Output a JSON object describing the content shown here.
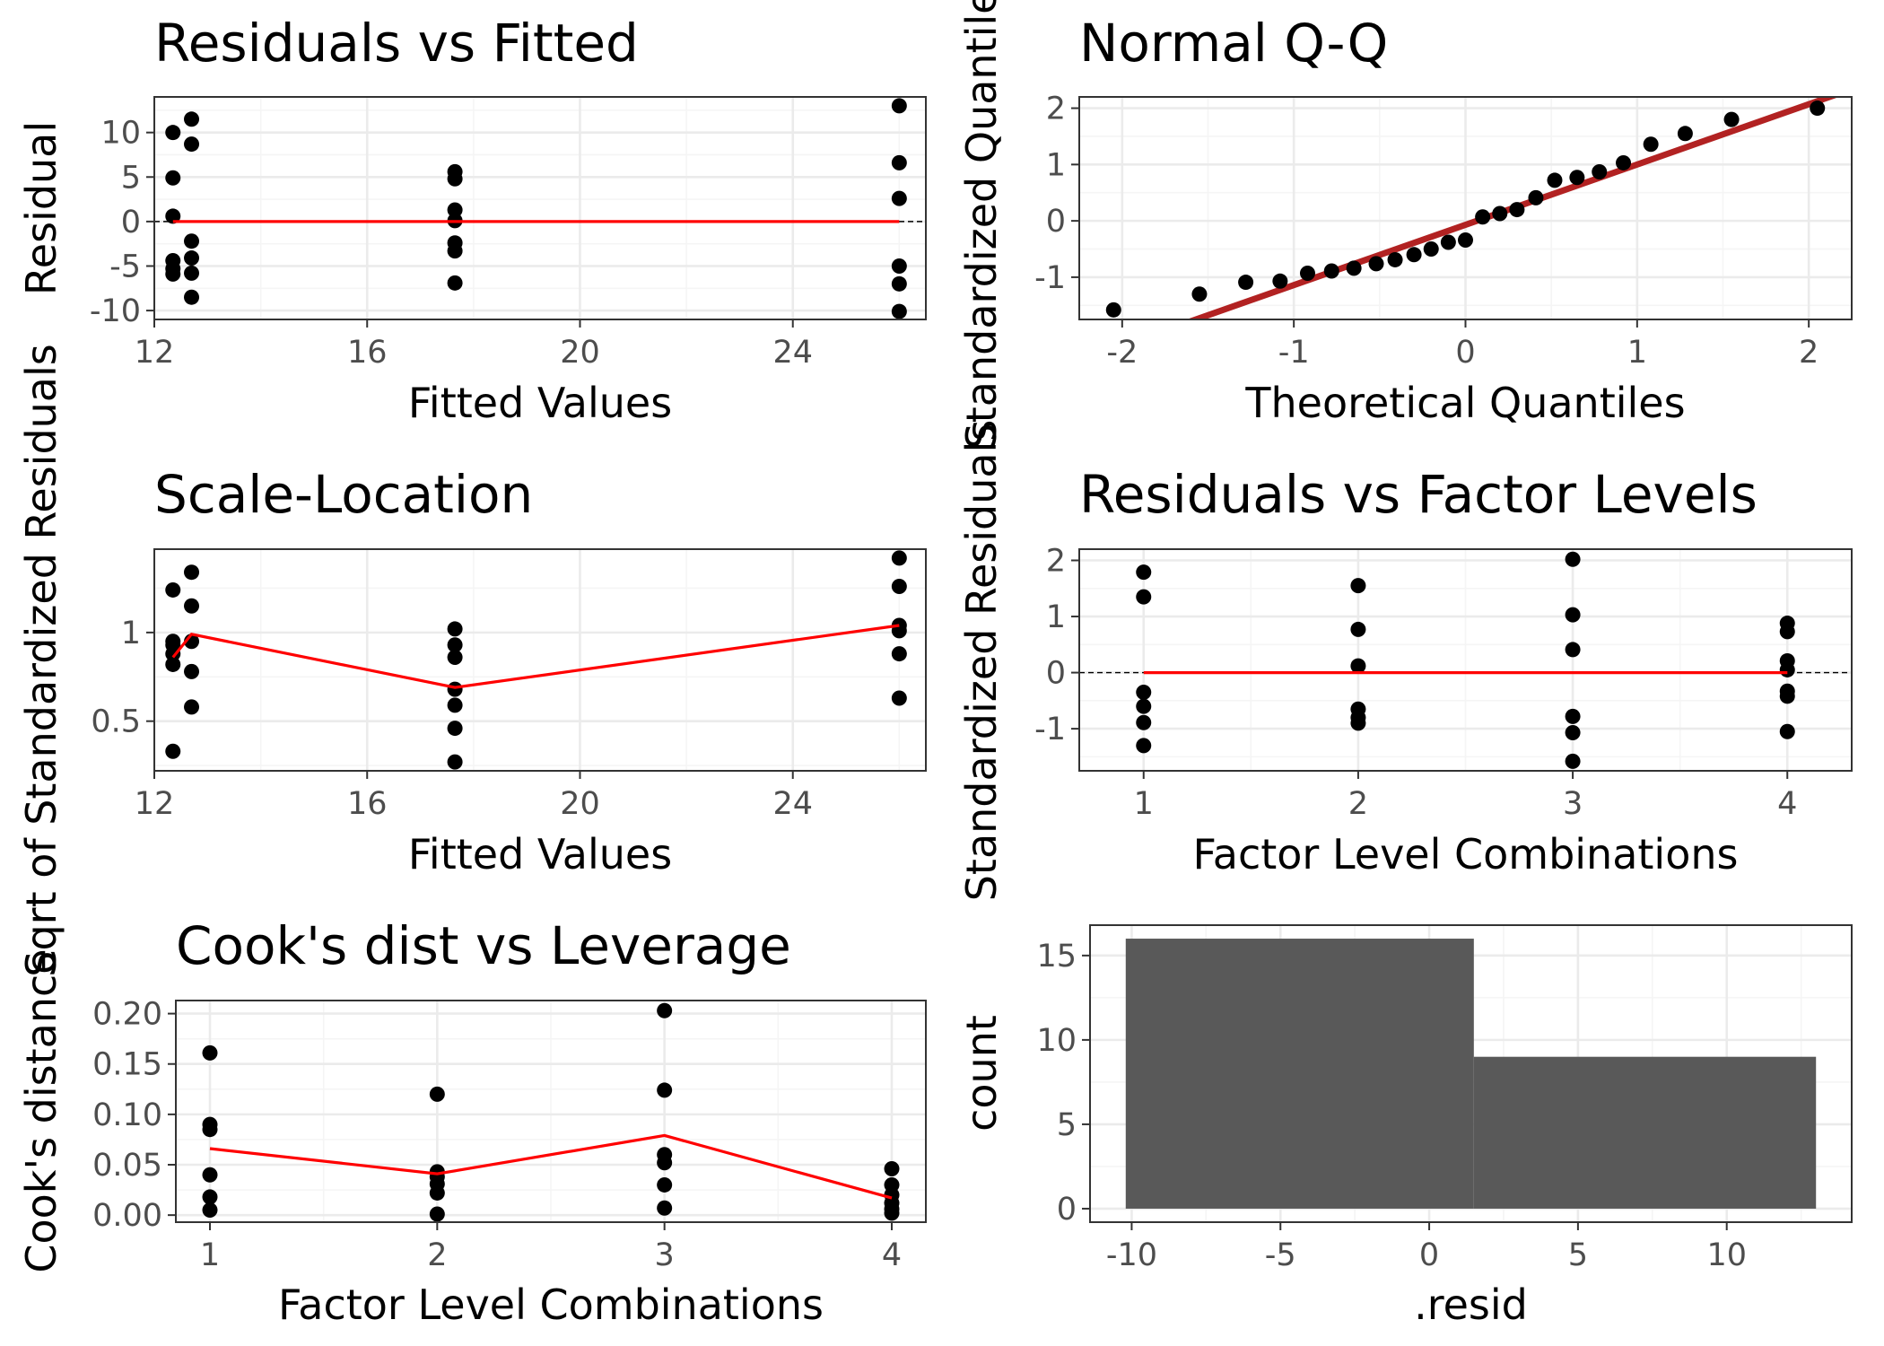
{
  "chart_data": [
    {
      "type": "scatter",
      "title": "Residuals vs Fitted",
      "xlabel": "Fitted Values",
      "ylabel": "Residual",
      "xlim": [
        12,
        26.5
      ],
      "ylim": [
        -11,
        14
      ],
      "xticks": [
        12,
        16,
        20,
        24
      ],
      "yticks": [
        10,
        5,
        0,
        -5,
        -10
      ],
      "hline": 0,
      "points": [
        [
          12.35,
          10
        ],
        [
          12.35,
          4.9
        ],
        [
          12.35,
          0.6
        ],
        [
          12.35,
          -4.4
        ],
        [
          12.35,
          -5.3
        ],
        [
          12.35,
          -5.9
        ],
        [
          12.7,
          11.5
        ],
        [
          12.7,
          8.7
        ],
        [
          12.7,
          -2.2
        ],
        [
          12.7,
          -4.1
        ],
        [
          12.7,
          -5.8
        ],
        [
          12.7,
          -8.5
        ],
        [
          17.65,
          5.6
        ],
        [
          17.65,
          4.8
        ],
        [
          17.65,
          1.3
        ],
        [
          17.65,
          0.1
        ],
        [
          17.65,
          -2.4
        ],
        [
          17.65,
          -3.3
        ],
        [
          17.65,
          -6.9
        ],
        [
          26.0,
          13.0
        ],
        [
          26.0,
          6.6
        ],
        [
          26.0,
          2.6
        ],
        [
          26.0,
          -5.0
        ],
        [
          26.0,
          -7.0
        ],
        [
          26.0,
          -10.1
        ]
      ],
      "trend": [
        [
          12.35,
          0
        ],
        [
          26.0,
          0
        ]
      ]
    },
    {
      "type": "scatter",
      "title": "Normal Q-Q",
      "xlabel": "Theoretical Quantiles",
      "ylabel": "Standardized Quantiles",
      "xlim": [
        -2.25,
        2.25
      ],
      "ylim": [
        -1.75,
        2.2
      ],
      "xticks": [
        -2,
        -1,
        0,
        1,
        2
      ],
      "yticks": [
        2,
        1,
        0,
        -1
      ],
      "points": [
        [
          -2.05,
          -1.58
        ],
        [
          -1.55,
          -1.3
        ],
        [
          -1.28,
          -1.09
        ],
        [
          -1.08,
          -1.07
        ],
        [
          -0.92,
          -0.93
        ],
        [
          -0.78,
          -0.89
        ],
        [
          -0.65,
          -0.84
        ],
        [
          -0.52,
          -0.76
        ],
        [
          -0.41,
          -0.69
        ],
        [
          -0.3,
          -0.6
        ],
        [
          -0.2,
          -0.5
        ],
        [
          -0.1,
          -0.38
        ],
        [
          0.0,
          -0.34
        ],
        [
          0.1,
          0.07
        ],
        [
          0.2,
          0.13
        ],
        [
          0.3,
          0.2
        ],
        [
          0.41,
          0.41
        ],
        [
          0.52,
          0.72
        ],
        [
          0.65,
          0.77
        ],
        [
          0.78,
          0.87
        ],
        [
          0.92,
          1.03
        ],
        [
          1.08,
          1.36
        ],
        [
          1.28,
          1.55
        ],
        [
          1.55,
          1.8
        ],
        [
          2.05,
          2.0
        ]
      ],
      "ref_line": {
        "slope": 1.07,
        "intercept": -0.07
      }
    },
    {
      "type": "scatter",
      "title": "Scale-Location",
      "xlabel": "Fitted Values",
      "ylabel": "Sqrt of Standardized Residuals",
      "xlim": [
        12,
        26.5
      ],
      "ylim": [
        0.22,
        1.47
      ],
      "xticks": [
        12,
        16,
        20,
        24
      ],
      "yticks": [
        1.0,
        0.5
      ],
      "points": [
        [
          12.35,
          1.24
        ],
        [
          12.35,
          0.95
        ],
        [
          12.35,
          0.93
        ],
        [
          12.35,
          0.88
        ],
        [
          12.35,
          0.82
        ],
        [
          12.35,
          0.33
        ],
        [
          12.7,
          1.34
        ],
        [
          12.7,
          1.15
        ],
        [
          12.7,
          0.95
        ],
        [
          12.7,
          0.78
        ],
        [
          12.7,
          0.58
        ],
        [
          17.65,
          1.02
        ],
        [
          17.65,
          0.93
        ],
        [
          17.65,
          0.86
        ],
        [
          17.65,
          0.68
        ],
        [
          17.65,
          0.59
        ],
        [
          17.65,
          0.46
        ],
        [
          17.65,
          0.27
        ],
        [
          26.0,
          1.42
        ],
        [
          26.0,
          1.26
        ],
        [
          26.0,
          1.04
        ],
        [
          26.0,
          1.01
        ],
        [
          26.0,
          0.88
        ],
        [
          26.0,
          0.63
        ]
      ],
      "trend": [
        [
          12.35,
          0.86
        ],
        [
          12.7,
          0.99
        ],
        [
          17.65,
          0.69
        ],
        [
          26.0,
          1.04
        ]
      ]
    },
    {
      "type": "scatter",
      "title": "Residuals vs Factor Levels",
      "xlabel": "Factor Level Combinations",
      "ylabel": "Standardized Residuals",
      "xlim": [
        0.7,
        4.3
      ],
      "ylim": [
        -1.75,
        2.2
      ],
      "xticks": [
        1,
        2,
        3,
        4
      ],
      "yticks": [
        2,
        1,
        0,
        -1
      ],
      "hline": 0,
      "points": [
        [
          1,
          1.79
        ],
        [
          1,
          1.35
        ],
        [
          1,
          -0.35
        ],
        [
          1,
          -0.6
        ],
        [
          1,
          -0.89
        ],
        [
          1,
          -1.3
        ],
        [
          2,
          1.55
        ],
        [
          2,
          0.77
        ],
        [
          2,
          0.12
        ],
        [
          2,
          -0.65
        ],
        [
          2,
          -0.8
        ],
        [
          2,
          -0.9
        ],
        [
          3,
          2.02
        ],
        [
          3,
          1.03
        ],
        [
          3,
          0.41
        ],
        [
          3,
          -0.78
        ],
        [
          3,
          -1.07
        ],
        [
          3,
          -1.58
        ],
        [
          4,
          0.88
        ],
        [
          4,
          0.73
        ],
        [
          4,
          0.21
        ],
        [
          4,
          0.05
        ],
        [
          4,
          -0.33
        ],
        [
          4,
          -0.42
        ],
        [
          4,
          -1.05
        ]
      ],
      "trend": [
        [
          1,
          0
        ],
        [
          4,
          0
        ]
      ]
    },
    {
      "type": "scatter",
      "title": "Cook's dist vs Leverage",
      "xlabel": "Factor Level Combinations",
      "ylabel": "Cook's distance",
      "xlim": [
        0.85,
        4.15
      ],
      "ylim": [
        -0.007,
        0.213
      ],
      "xticks": [
        1,
        2,
        3,
        4
      ],
      "yticks": [
        0.2,
        0.15,
        0.1,
        0.05,
        0.0
      ],
      "ytick_labels": [
        "0.20",
        "0.15",
        "0.10",
        "0.05",
        "0.00"
      ],
      "points": [
        [
          1,
          0.161
        ],
        [
          1,
          0.09
        ],
        [
          1,
          0.085
        ],
        [
          1,
          0.04
        ],
        [
          1,
          0.018
        ],
        [
          1,
          0.005
        ],
        [
          2,
          0.12
        ],
        [
          2,
          0.043
        ],
        [
          2,
          0.038
        ],
        [
          2,
          0.031
        ],
        [
          2,
          0.022
        ],
        [
          2,
          0.001
        ],
        [
          3,
          0.203
        ],
        [
          3,
          0.124
        ],
        [
          3,
          0.06
        ],
        [
          3,
          0.052
        ],
        [
          3,
          0.03
        ],
        [
          3,
          0.007
        ],
        [
          4,
          0.046
        ],
        [
          4,
          0.03
        ],
        [
          4,
          0.02
        ],
        [
          4,
          0.012
        ],
        [
          4,
          0.006
        ],
        [
          4,
          0.002
        ]
      ],
      "trend": [
        [
          1,
          0.066
        ],
        [
          2,
          0.041
        ],
        [
          3,
          0.079
        ],
        [
          4,
          0.017
        ]
      ]
    },
    {
      "type": "bar",
      "title": "",
      "xlabel": ".resid",
      "ylabel": "count",
      "xlim": [
        -11.4,
        14.2
      ],
      "ylim": [
        -0.8,
        16.8
      ],
      "xticks": [
        -10,
        -5,
        0,
        5,
        10
      ],
      "yticks": [
        15,
        10,
        5,
        0
      ],
      "bins": [
        {
          "from": -10.2,
          "to": 1.5,
          "count": 16
        },
        {
          "from": 1.5,
          "to": 13.0,
          "count": 9
        }
      ]
    }
  ],
  "colors": {
    "points": "#000000",
    "trend": "#ff0000",
    "qq_line": "#b22222",
    "bars": "#595959",
    "grid_major": "#ebebeb",
    "grid_minor": "#f5f5f5",
    "frame": "#333333",
    "tick_text": "#4d4d4d"
  }
}
